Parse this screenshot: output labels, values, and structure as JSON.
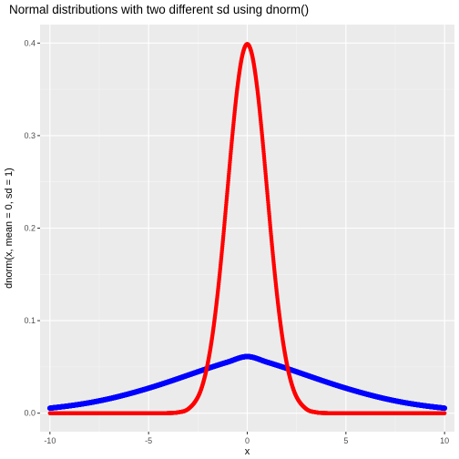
{
  "chart_data": {
    "type": "scatter",
    "title": "Normal distributions with two different sd using dnorm()",
    "xlabel": "x",
    "ylabel": "dnorm(x, mean = 0, sd = 1)",
    "xlim": [
      -10.5,
      10.5
    ],
    "ylim": [
      -0.02,
      0.42
    ],
    "x_ticks": [
      -10,
      -5,
      0,
      5,
      10
    ],
    "x_tick_labels": [
      "-10",
      "-5",
      "0",
      "5",
      "10"
    ],
    "y_ticks": [
      0.0,
      0.1,
      0.2,
      0.3,
      0.4
    ],
    "y_tick_labels": [
      "0.0",
      "0.1",
      "0.2",
      "0.3",
      "0.4"
    ],
    "grid": true,
    "legend": "none",
    "background": "#ebebeb",
    "series": [
      {
        "color": "#0000ff",
        "x": [
          -10,
          -9,
          -8,
          -7,
          -6,
          -5,
          -4,
          -3,
          -2,
          -1,
          0,
          1,
          2,
          3,
          4,
          5,
          6,
          7,
          8,
          9,
          10
        ],
        "y": [
          0.0054,
          0.008,
          0.0113,
          0.0156,
          0.0209,
          0.027,
          0.0338,
          0.0411,
          0.0484,
          0.0552,
          0.0612,
          0.0552,
          0.0484,
          0.0411,
          0.0338,
          0.027,
          0.0209,
          0.0156,
          0.0113,
          0.008,
          0.0054
        ]
      },
      {
        "color": "#ff0000",
        "x": [
          -10,
          -4,
          -3.5,
          -3,
          -2.5,
          -2.25,
          -2,
          -1.75,
          -1.5,
          -1.25,
          -1,
          -0.75,
          -0.5,
          -0.25,
          0,
          0.25,
          0.5,
          0.75,
          1,
          1.25,
          1.5,
          1.75,
          2,
          2.25,
          2.5,
          3,
          3.5,
          4,
          10
        ],
        "y": [
          0.0,
          0.0001,
          0.0009,
          0.0044,
          0.0175,
          0.0317,
          0.054,
          0.0863,
          0.1295,
          0.1826,
          0.242,
          0.3011,
          0.3521,
          0.3867,
          0.3989,
          0.3867,
          0.3521,
          0.3011,
          0.242,
          0.1826,
          0.1295,
          0.0863,
          0.054,
          0.0317,
          0.0175,
          0.0044,
          0.0009,
          0.0001,
          0.0
        ]
      }
    ]
  }
}
